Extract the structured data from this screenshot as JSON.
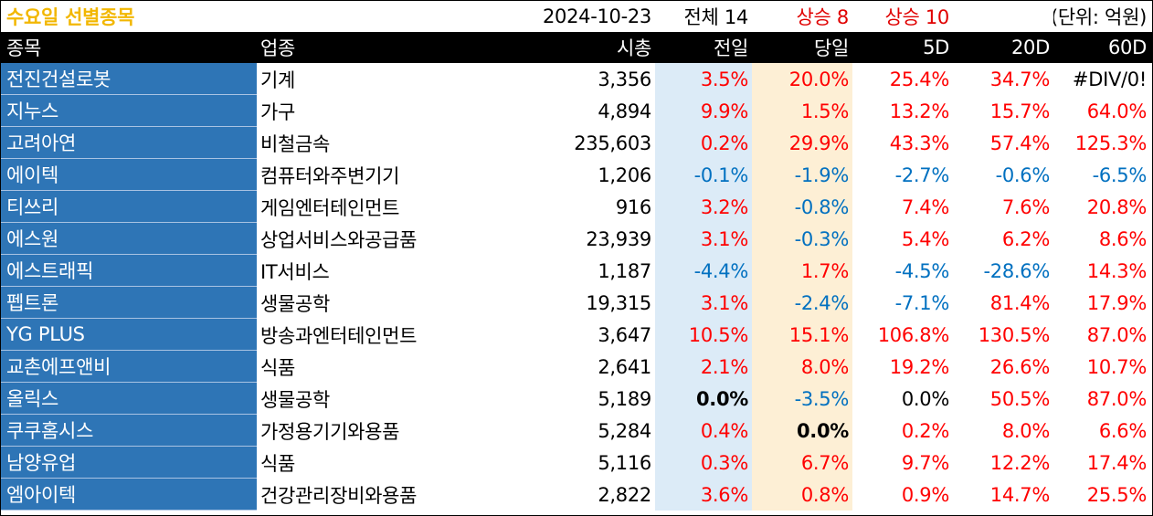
{
  "title": {
    "name": "수요일 선별종목",
    "date": "2024-10-23",
    "total": "전체 14",
    "rise_today": "상승 8",
    "rise_5d": "상승 10",
    "unit": "(단위: 억원)"
  },
  "headers": [
    "종목",
    "업종",
    "시총",
    "전일",
    "당일",
    "5D",
    "20D",
    "60D"
  ],
  "rows": [
    {
      "name": "전진건설로봇",
      "sector": "기계",
      "cap": "3,356",
      "prev": "3.5%",
      "today": "20.0%",
      "d5": "25.4%",
      "d20": "34.7%",
      "d60": "#DIV/0!"
    },
    {
      "name": "지누스",
      "sector": "가구",
      "cap": "4,894",
      "prev": "9.9%",
      "today": "1.5%",
      "d5": "13.2%",
      "d20": "15.7%",
      "d60": "64.0%"
    },
    {
      "name": "고려아연",
      "sector": "비철금속",
      "cap": "235,603",
      "prev": "0.2%",
      "today": "29.9%",
      "d5": "43.3%",
      "d20": "57.4%",
      "d60": "125.3%"
    },
    {
      "name": "에이텍",
      "sector": "컴퓨터와주변기기",
      "cap": "1,206",
      "prev": "-0.1%",
      "today": "-1.9%",
      "d5": "-2.7%",
      "d20": "-0.6%",
      "d60": "-6.5%"
    },
    {
      "name": "티쓰리",
      "sector": "게임엔터테인먼트",
      "cap": "916",
      "prev": "3.2%",
      "today": "-0.8%",
      "d5": "7.4%",
      "d20": "7.6%",
      "d60": "20.8%"
    },
    {
      "name": "에스원",
      "sector": "상업서비스와공급품",
      "cap": "23,939",
      "prev": "3.1%",
      "today": "-0.3%",
      "d5": "5.4%",
      "d20": "6.2%",
      "d60": "8.6%"
    },
    {
      "name": "에스트래픽",
      "sector": "IT서비스",
      "cap": "1,187",
      "prev": "-4.4%",
      "today": "1.7%",
      "d5": "-4.5%",
      "d20": "-28.6%",
      "d60": "14.3%"
    },
    {
      "name": "펩트론",
      "sector": "생물공학",
      "cap": "19,315",
      "prev": "3.1%",
      "today": "-2.4%",
      "d5": "-7.1%",
      "d20": "81.4%",
      "d60": "17.9%"
    },
    {
      "name": "YG PLUS",
      "sector": "방송과엔터테인먼트",
      "cap": "3,647",
      "prev": "10.5%",
      "today": "15.1%",
      "d5": "106.8%",
      "d20": "130.5%",
      "d60": "87.0%"
    },
    {
      "name": "교촌에프앤비",
      "sector": "식품",
      "cap": "2,641",
      "prev": "2.1%",
      "today": "8.0%",
      "d5": "19.2%",
      "d20": "26.6%",
      "d60": "10.7%"
    },
    {
      "name": "올릭스",
      "sector": "생물공학",
      "cap": "5,189",
      "prev": "0.0%",
      "today": "-3.5%",
      "d5": "0.0%",
      "d20": "50.5%",
      "d60": "87.0%"
    },
    {
      "name": "쿠쿠홈시스",
      "sector": "가정용기기와용품",
      "cap": "5,284",
      "prev": "0.4%",
      "today": "0.0%",
      "d5": "0.2%",
      "d20": "8.0%",
      "d60": "6.6%"
    },
    {
      "name": "남양유업",
      "sector": "식품",
      "cap": "5,116",
      "prev": "0.3%",
      "today": "6.7%",
      "d5": "9.7%",
      "d20": "12.2%",
      "d60": "17.4%"
    },
    {
      "name": "엠아이텍",
      "sector": "건강관리장비와용품",
      "cap": "2,822",
      "prev": "3.6%",
      "today": "0.8%",
      "d5": "0.9%",
      "d20": "14.7%",
      "d60": "25.5%"
    }
  ],
  "colors": {
    "positive": "#ff0000",
    "negative": "#0070c0",
    "name_bg": "#2e75b6",
    "prev_bg": "#dcebf7",
    "today_bg": "#fdefd5",
    "title_accent": "#f2b700"
  }
}
